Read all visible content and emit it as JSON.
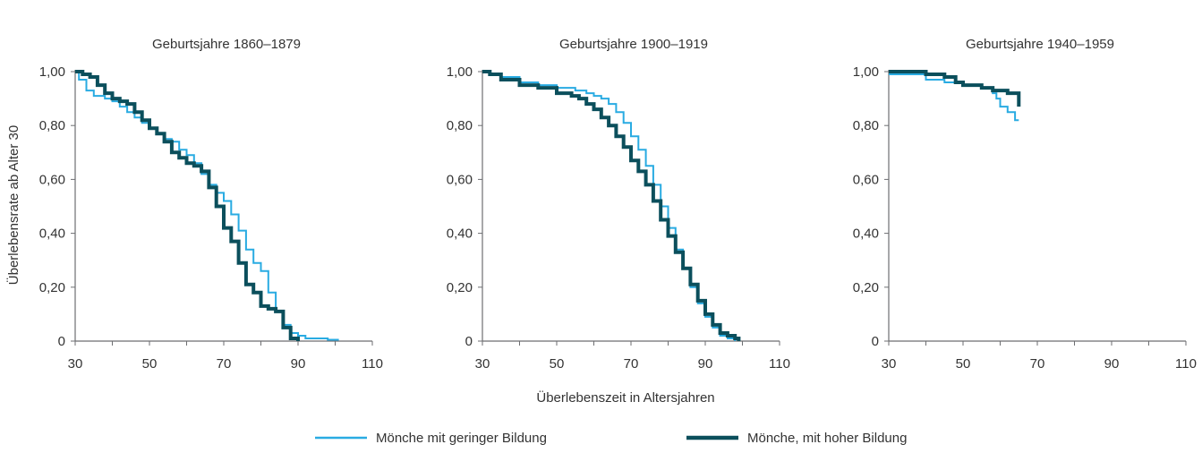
{
  "chart_data": {
    "type": "line",
    "ylabel": "Überlebensrate ab Alter 30",
    "xlabel": "Überlebenszeit in Altersjahren",
    "xlim": [
      30,
      110
    ],
    "ylim": [
      0,
      1
    ],
    "xticks": [
      "30",
      "50",
      "70",
      "90",
      "110"
    ],
    "yticks": [
      "0",
      "0,20",
      "0,40",
      "0,60",
      "0,80",
      "1,00"
    ],
    "grid": false,
    "legend_position": "bottom",
    "legend": [
      {
        "label": "Mönche mit geringer Bildung",
        "color": "#29abe2"
      },
      {
        "label": "Mönche, mit hoher Bildung",
        "color": "#0b4f5c"
      }
    ],
    "panels": [
      {
        "title": "Geburtsjahre 1860–1879",
        "series": [
          {
            "name": "Mönche mit geringer Bildung",
            "color": "#29abe2",
            "x": [
              30,
              31,
              33,
              35,
              38,
              40,
              42,
              44,
              46,
              48,
              50,
              52,
              54,
              56,
              58,
              60,
              62,
              64,
              66,
              68,
              70,
              72,
              74,
              76,
              78,
              80,
              82,
              84,
              86,
              88,
              90,
              92,
              95,
              98,
              101
            ],
            "y": [
              1.0,
              0.97,
              0.93,
              0.91,
              0.9,
              0.89,
              0.87,
              0.85,
              0.83,
              0.81,
              0.79,
              0.77,
              0.75,
              0.74,
              0.71,
              0.69,
              0.66,
              0.62,
              0.58,
              0.55,
              0.52,
              0.47,
              0.41,
              0.34,
              0.29,
              0.26,
              0.18,
              0.11,
              0.06,
              0.03,
              0.02,
              0.01,
              0.01,
              0.005,
              0.005
            ]
          },
          {
            "name": "Mönche, mit hoher Bildung",
            "color": "#0b4f5c",
            "x": [
              30,
              32,
              34,
              36,
              38,
              40,
              42,
              44,
              46,
              48,
              50,
              52,
              54,
              56,
              58,
              60,
              62,
              64,
              66,
              68,
              70,
              72,
              74,
              76,
              78,
              80,
              82,
              84,
              86,
              88,
              90
            ],
            "y": [
              1.0,
              0.99,
              0.98,
              0.95,
              0.92,
              0.9,
              0.89,
              0.88,
              0.85,
              0.82,
              0.79,
              0.77,
              0.74,
              0.7,
              0.68,
              0.66,
              0.65,
              0.63,
              0.57,
              0.5,
              0.42,
              0.37,
              0.29,
              0.21,
              0.18,
              0.13,
              0.12,
              0.11,
              0.05,
              0.01,
              0.0
            ]
          }
        ]
      },
      {
        "title": "Geburtsjahre 1900–1919",
        "series": [
          {
            "name": "Mönche mit geringer Bildung",
            "color": "#29abe2",
            "x": [
              30,
              32,
              35,
              40,
              45,
              50,
              55,
              58,
              60,
              62,
              64,
              66,
              68,
              70,
              72,
              74,
              76,
              78,
              80,
              82,
              84,
              86,
              88,
              90,
              92,
              94,
              96,
              98
            ],
            "y": [
              1.0,
              0.99,
              0.98,
              0.96,
              0.95,
              0.94,
              0.93,
              0.92,
              0.91,
              0.9,
              0.88,
              0.85,
              0.81,
              0.76,
              0.71,
              0.65,
              0.58,
              0.5,
              0.42,
              0.34,
              0.27,
              0.2,
              0.14,
              0.09,
              0.05,
              0.02,
              0.01,
              0.0
            ]
          },
          {
            "name": "Mönche, mit hoher Bildung",
            "color": "#0b4f5c",
            "x": [
              30,
              32,
              35,
              40,
              45,
              50,
              52,
              54,
              56,
              58,
              60,
              62,
              64,
              66,
              68,
              70,
              72,
              74,
              76,
              78,
              80,
              82,
              84,
              86,
              88,
              90,
              92,
              94,
              96,
              98,
              99
            ],
            "y": [
              1.0,
              0.99,
              0.97,
              0.95,
              0.94,
              0.92,
              0.92,
              0.91,
              0.9,
              0.88,
              0.86,
              0.83,
              0.8,
              0.76,
              0.72,
              0.67,
              0.63,
              0.58,
              0.52,
              0.45,
              0.39,
              0.33,
              0.27,
              0.21,
              0.15,
              0.1,
              0.06,
              0.03,
              0.02,
              0.01,
              0.0
            ]
          }
        ]
      },
      {
        "title": "Geburtsjahre 1940–1959",
        "series": [
          {
            "name": "Mönche mit geringer Bildung",
            "color": "#29abe2",
            "x": [
              30,
              36,
              40,
              45,
              50,
              55,
              58,
              59,
              60,
              62,
              64,
              65
            ],
            "y": [
              0.99,
              0.99,
              0.97,
              0.96,
              0.95,
              0.94,
              0.92,
              0.9,
              0.87,
              0.85,
              0.82,
              0.82
            ]
          },
          {
            "name": "Mönche, mit hoher Bildung",
            "color": "#0b4f5c",
            "x": [
              30,
              36,
              40,
              45,
              48,
              50,
              55,
              58,
              60,
              62,
              64,
              65
            ],
            "y": [
              1.0,
              1.0,
              0.99,
              0.98,
              0.96,
              0.95,
              0.94,
              0.93,
              0.93,
              0.92,
              0.92,
              0.87
            ]
          }
        ]
      }
    ]
  }
}
